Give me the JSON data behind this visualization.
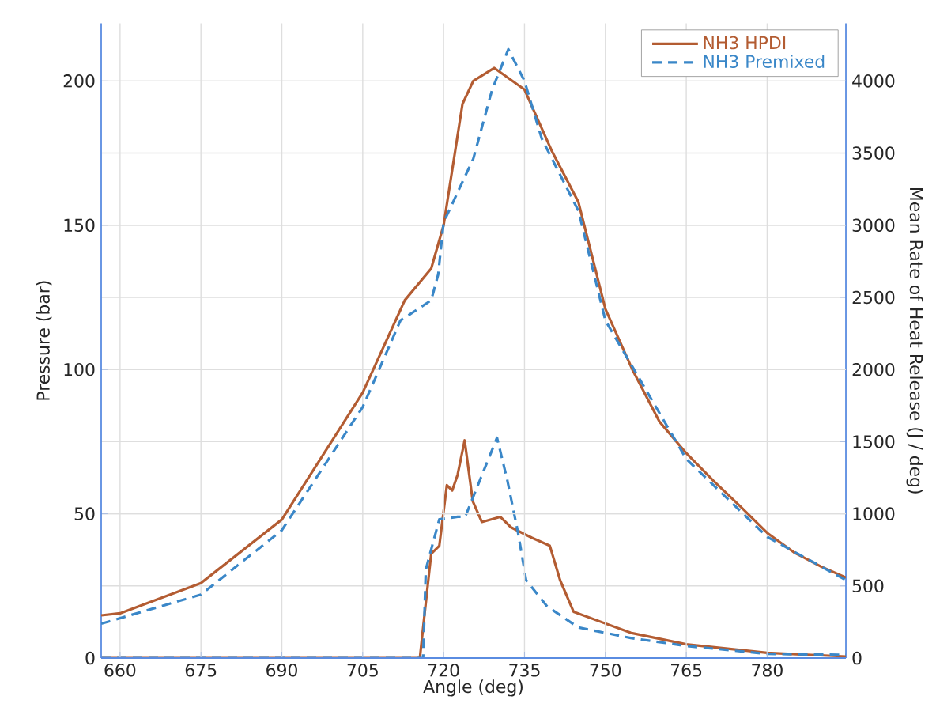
{
  "chart_data": {
    "type": "line",
    "xlabel": "Angle (deg)",
    "ylabel": "Pressure (bar)",
    "y2label": "Mean Rate of Heat Release (J / deg)",
    "xlim": [
      656.5,
      794.6
    ],
    "ylim": [
      0,
      220
    ],
    "y2lim": [
      0,
      4400
    ],
    "xticks": [
      660,
      675,
      690,
      705,
      720,
      735,
      750,
      765,
      780
    ],
    "yticks": [
      0,
      50,
      100,
      150,
      200
    ],
    "y2ticks": [
      0,
      500,
      1000,
      1500,
      2000,
      2500,
      3000,
      3500,
      4000
    ],
    "grid": true,
    "legend": "top right",
    "marker": "none",
    "series": [
      {
        "name": "NH3 HPDI",
        "color": "#b35c32",
        "line_style": "solid",
        "x": [
          656.5,
          660,
          675,
          690,
          705,
          712.8,
          717.7,
          720,
          723.5,
          725.5,
          729.4,
          735,
          740,
          745,
          750,
          755,
          760,
          765,
          770,
          775,
          780,
          785,
          790,
          794.6
        ],
        "values": [
          14.8,
          15.5,
          26,
          48,
          92,
          124,
          135,
          150,
          192,
          200,
          204.5,
          197,
          176,
          158,
          121,
          100,
          82,
          71,
          61.5,
          52.6,
          43.4,
          36.6,
          31.7,
          27.9
        ]
      },
      {
        "name": "NH3 Premixed",
        "color": "#3a87c8",
        "line_style": "dashed",
        "x": [
          656.5,
          675,
          690,
          705,
          712,
          717.7,
          719,
          720,
          725.5,
          729,
          732,
          735,
          738.2,
          745,
          750,
          765,
          780,
          794.6
        ],
        "values": [
          11.9,
          22,
          44.3,
          87,
          117,
          124,
          133,
          151,
          173,
          197,
          211,
          200,
          180,
          155,
          117,
          69,
          42,
          27
        ]
      },
      {
        "color": "#b35c32",
        "line_style": "solid",
        "axis": "y2",
        "x": [
          656.5,
          715.6,
          716.2,
          717.7,
          719.2,
          720.6,
          721.6,
          722.6,
          723.9,
          725.4,
          727.1,
          730.5,
          732.5,
          736.4,
          739.7,
          741.6,
          744.1,
          754.7,
          765,
          780,
          794.6
        ],
        "values": [
          0,
          0,
          212,
          723,
          778,
          1198,
          1162,
          1271,
          1509,
          1088,
          943,
          979,
          906,
          833,
          778,
          540,
          321,
          175,
          95,
          36,
          11
        ]
      },
      {
        "color": "#3a87c8",
        "line_style": "dashed",
        "axis": "y2",
        "x": [
          656.5,
          716.2,
          716.7,
          719.2,
          722.6,
          724.0,
          729.9,
          731.8,
          733.8,
          735.3,
          739.2,
          745.0,
          754.7,
          765,
          780,
          794.6
        ],
        "values": [
          0,
          0,
          614,
          961,
          979,
          979,
          1527,
          1235,
          869,
          540,
          358,
          212,
          139,
          84,
          29,
          22
        ]
      }
    ]
  }
}
